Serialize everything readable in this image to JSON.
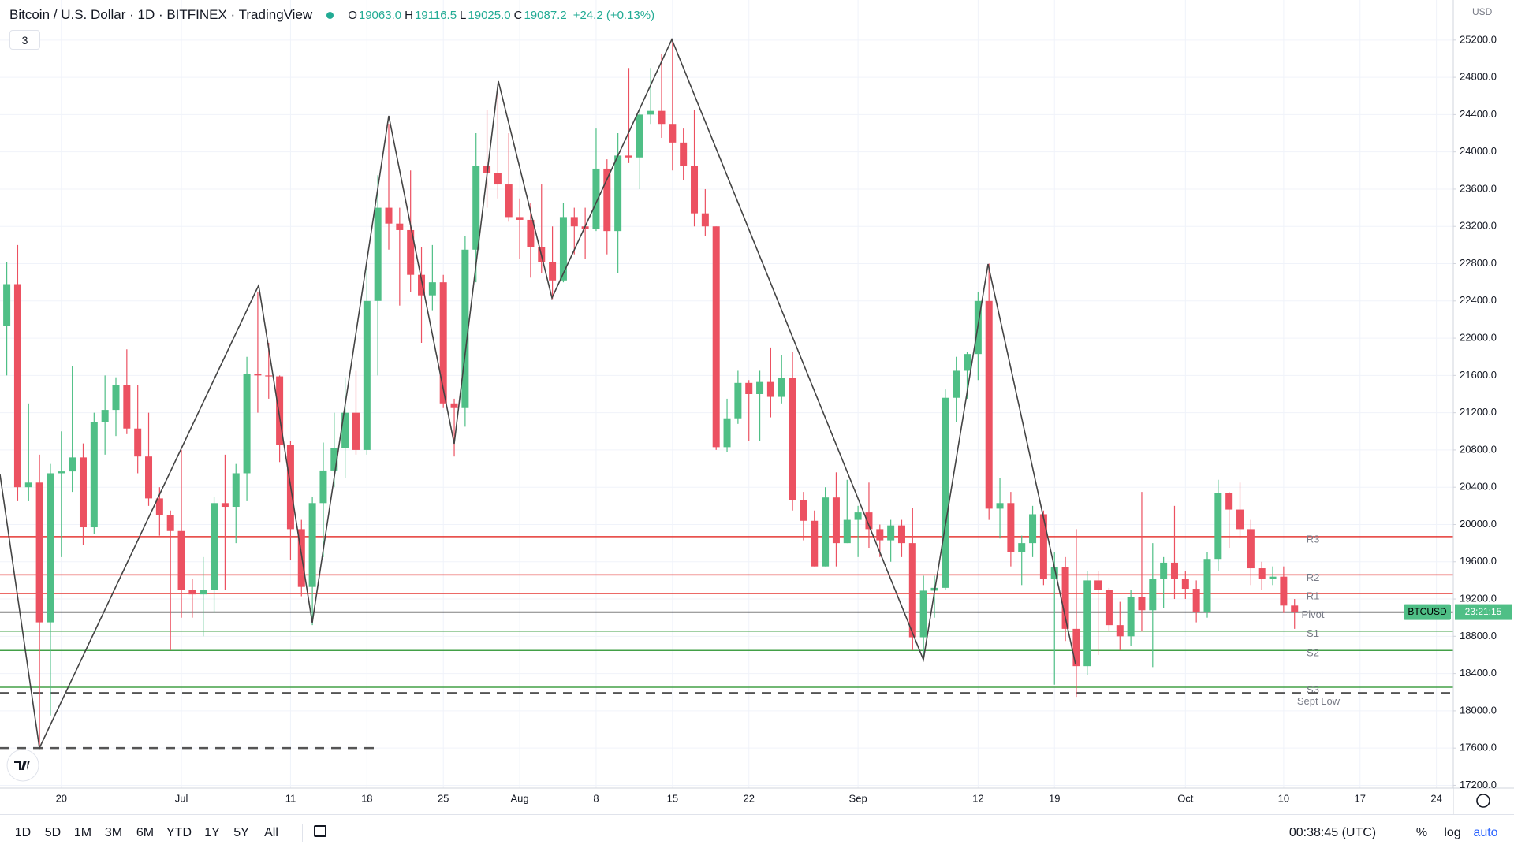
{
  "header": {
    "title": "Bitcoin / U.S. Dollar · 1D · BITFINEX · TradingView",
    "ohlc": [
      {
        "label": "O",
        "value": "19063.0"
      },
      {
        "label": "H",
        "value": "19116.5"
      },
      {
        "label": "L",
        "value": "19025.0"
      },
      {
        "label": "C",
        "value": "19087.2"
      }
    ],
    "change": "+24.2 (+0.13%)",
    "indicators": "3",
    "currency": "USD"
  },
  "toolbar": {
    "ranges": [
      "1D",
      "5D",
      "1M",
      "3M",
      "6M",
      "YTD",
      "1Y",
      "5Y",
      "All"
    ],
    "clock": "00:38:45 (UTC)",
    "options": [
      "%",
      "log",
      "auto"
    ]
  },
  "chart_data": {
    "type": "candlestick",
    "up_color": "#4fbf86",
    "down_color": "#ec5161",
    "categories": [
      null,
      null,
      null,
      null,
      null,
      "20",
      null,
      null,
      null,
      null,
      null,
      null,
      null,
      null,
      null,
      null,
      "Jul",
      null,
      null,
      null,
      null,
      null,
      null,
      null,
      null,
      null,
      "11",
      null,
      null,
      null,
      null,
      null,
      null,
      "18",
      null,
      null,
      null,
      null,
      null,
      null,
      "25",
      null,
      null,
      null,
      null,
      null,
      null,
      "Aug",
      null,
      null,
      null,
      null,
      null,
      null,
      "8",
      null,
      null,
      null,
      null,
      null,
      null,
      "15",
      null,
      null,
      null,
      null,
      null,
      null,
      "22",
      null,
      null,
      null,
      null,
      null,
      null,
      null,
      null,
      null,
      "Sep",
      null,
      null,
      null,
      null,
      null,
      null,
      null,
      null,
      null,
      null,
      "12",
      null,
      null,
      null,
      null,
      null,
      null,
      "19",
      null,
      null,
      null,
      null,
      null,
      null,
      null,
      null,
      null,
      null,
      null,
      "Oct",
      null,
      null,
      null,
      null,
      null,
      null,
      null,
      null,
      "10",
      null,
      null,
      null,
      null,
      null,
      null,
      "17",
      null,
      null,
      null,
      null,
      null,
      null,
      "24",
      null
    ],
    "open": [
      22130,
      22580,
      20400,
      20450,
      18950,
      20550,
      20570,
      20720,
      19970,
      21100,
      21230,
      21500,
      21030,
      20730,
      20280,
      20100,
      19930,
      19300,
      19250,
      19300,
      20230,
      20190,
      20550,
      21620,
      21600,
      21590,
      20850,
      19950,
      19330,
      20230,
      20580,
      20820,
      21200,
      20800,
      22400,
      23400,
      23230,
      23160,
      22680,
      22460,
      22600,
      21300,
      21250,
      22950,
      23850,
      23770,
      23650,
      23300,
      23270,
      22980,
      22820,
      22620,
      23300,
      23200,
      23170,
      23820,
      23150,
      23960,
      23940,
      24400,
      24440,
      24300,
      24100,
      23850,
      23340,
      23200,
      20830,
      21140,
      21520,
      21400,
      21530,
      21370,
      21570,
      20260,
      20040,
      19550,
      20290,
      19800,
      20050,
      20130,
      19950,
      19830,
      19990,
      19800,
      18790,
      19290,
      19320,
      21360,
      21650,
      21830,
      22400,
      20170,
      20230,
      19700,
      19800,
      20110,
      19420,
      19540,
      18880,
      18480,
      19400,
      19300,
      18920,
      18800,
      19220,
      19080,
      19420,
      19590,
      19420,
      19310,
      19060,
      19630,
      20340,
      20160,
      19950,
      19530,
      19420,
      19440,
      19130,
      null,
      null,
      null,
      null,
      null,
      null,
      null,
      null,
      null,
      null,
      null,
      null,
      null,
      null
    ],
    "high": [
      22820,
      23000,
      21300,
      20750,
      20650,
      21000,
      21700,
      20870,
      21200,
      21600,
      21580,
      21880,
      21500,
      21200,
      20400,
      20150,
      20800,
      19420,
      19650,
      20300,
      20750,
      20650,
      21800,
      22500,
      21950,
      21600,
      20900,
      20050,
      20300,
      20880,
      21200,
      21580,
      21650,
      22750,
      23750,
      24300,
      23400,
      23800,
      22980,
      23000,
      22680,
      21350,
      23100,
      24200,
      24450,
      24700,
      24200,
      23500,
      23450,
      23650,
      23200,
      23450,
      23400,
      23400,
      24250,
      23920,
      24200,
      24900,
      24450,
      24900,
      25050,
      25200,
      24250,
      24450,
      23600,
      23200,
      21350,
      21650,
      21550,
      21650,
      21900,
      21820,
      21850,
      20350,
      20150,
      20400,
      20560,
      20480,
      20200,
      20450,
      20000,
      20050,
      20050,
      20180,
      19450,
      19450,
      21450,
      21800,
      21850,
      22500,
      22800,
      20500,
      20350,
      19880,
      20200,
      20150,
      19700,
      19650,
      19950,
      19500,
      19500,
      19320,
      19170,
      19300,
      20350,
      19800,
      19650,
      20200,
      19500,
      19400,
      19700,
      20480,
      20350,
      20450,
      20050,
      19600,
      19550,
      19550,
      19200,
      null,
      null,
      null,
      null,
      null,
      null,
      null,
      null,
      null,
      null,
      null,
      null,
      null,
      null
    ],
    "low": [
      21600,
      20250,
      20250,
      17600,
      17950,
      19650,
      20350,
      19780,
      19900,
      20750,
      20950,
      20970,
      20550,
      20200,
      19880,
      18650,
      19000,
      19000,
      18800,
      19050,
      19300,
      19800,
      20250,
      21200,
      21350,
      20670,
      19620,
      19230,
      18920,
      19650,
      20400,
      20500,
      20750,
      20750,
      21600,
      22950,
      22350,
      22500,
      21950,
      22300,
      21250,
      20730,
      21050,
      22600,
      23400,
      23500,
      23250,
      22850,
      22650,
      22700,
      22420,
      22600,
      22900,
      22850,
      23150,
      22900,
      22700,
      23880,
      23600,
      24300,
      24150,
      23800,
      23700,
      23200,
      23100,
      20800,
      20780,
      21080,
      20900,
      20900,
      21150,
      21300,
      20150,
      19830,
      19550,
      19550,
      19550,
      19800,
      19650,
      19750,
      19650,
      19600,
      19650,
      18650,
      18550,
      19000,
      19300,
      21100,
      21350,
      21550,
      20050,
      19850,
      19550,
      19350,
      19650,
      19350,
      18280,
      18750,
      18150,
      18380,
      18600,
      18850,
      18650,
      18700,
      18850,
      18470,
      19100,
      19200,
      19200,
      18950,
      19000,
      19500,
      19750,
      19850,
      19350,
      19300,
      19350,
      19050,
      18880,
      null,
      null,
      null,
      null,
      null,
      null,
      null,
      null,
      null,
      null,
      null,
      null,
      null,
      null
    ],
    "close": [
      22580,
      20400,
      20450,
      18950,
      20550,
      20570,
      20720,
      19970,
      21100,
      21230,
      21500,
      21030,
      20730,
      20280,
      20100,
      19930,
      19300,
      19250,
      19300,
      20230,
      20190,
      20550,
      21620,
      21600,
      21590,
      20850,
      19950,
      19330,
      20230,
      20580,
      20820,
      21200,
      20800,
      22400,
      23400,
      23230,
      23160,
      22680,
      22460,
      22600,
      21300,
      21250,
      22950,
      23850,
      23770,
      23650,
      23300,
      23270,
      22980,
      22820,
      22620,
      23300,
      23200,
      23170,
      23820,
      23150,
      23960,
      23940,
      24400,
      24440,
      24300,
      24100,
      23850,
      23340,
      23200,
      20830,
      21140,
      21520,
      21400,
      21530,
      21370,
      21570,
      20260,
      20040,
      19550,
      20290,
      19800,
      20050,
      20130,
      19950,
      19830,
      19990,
      19800,
      18790,
      19290,
      19320,
      21360,
      21650,
      21830,
      22400,
      20170,
      20230,
      19700,
      19800,
      20110,
      19420,
      19540,
      18880,
      18480,
      19400,
      19300,
      18920,
      18800,
      19220,
      19080,
      19420,
      19590,
      19420,
      19310,
      19060,
      19630,
      20340,
      20160,
      19950,
      19530,
      19420,
      19440,
      19130,
      19060,
      null,
      null,
      null,
      null,
      null,
      null,
      null,
      null,
      null,
      null,
      null,
      null,
      null,
      null
    ],
    "ylim": [
      17170,
      25630
    ],
    "yticks": [
      {
        "value": 17200,
        "label": "17200.0"
      },
      {
        "value": 17600,
        "label": "17600.0"
      },
      {
        "value": 18000,
        "label": "18000.0"
      },
      {
        "value": 18400,
        "label": "18400.0"
      },
      {
        "value": 18800,
        "label": "18800.0"
      },
      {
        "value": 19200,
        "label": "19200.0"
      },
      {
        "value": 19600,
        "label": "19600.0"
      },
      {
        "value": 20000,
        "label": "20000.0"
      },
      {
        "value": 20400,
        "label": "20400.0"
      },
      {
        "value": 20800,
        "label": "20800.0"
      },
      {
        "value": 21200,
        "label": "21200.0"
      },
      {
        "value": 21600,
        "label": "21600.0"
      },
      {
        "value": 22000,
        "label": "22000.0"
      },
      {
        "value": 22400,
        "label": "22400.0"
      },
      {
        "value": 22800,
        "label": "22800.0"
      },
      {
        "value": 23200,
        "label": "23200.0"
      },
      {
        "value": 23600,
        "label": "23600.0"
      },
      {
        "value": 24000,
        "label": "24000.0"
      },
      {
        "value": 24400,
        "label": "24400.0"
      },
      {
        "value": 24800,
        "label": "24800.0"
      },
      {
        "value": 25200,
        "label": "25200.0"
      }
    ],
    "grid": true,
    "levels": [
      {
        "name": "R3",
        "value": 19870,
        "color": "#e53935"
      },
      {
        "name": "R2",
        "value": 19460,
        "color": "#e53935"
      },
      {
        "name": "R1",
        "value": 19260,
        "color": "#e53935"
      },
      {
        "name": "Pivot",
        "value": 19060,
        "color": "#000000"
      },
      {
        "name": "S1",
        "value": 18856,
        "color": "#43a047"
      },
      {
        "name": "S2",
        "value": 18648,
        "color": "#43a047"
      },
      {
        "name": "S3",
        "value": 18253,
        "color": "#43a047"
      },
      {
        "name": "Sept Low",
        "value": 18190,
        "color": "#555555",
        "dashed": true
      },
      {
        "value": 17600,
        "color": "#555555",
        "dashed": true
      }
    ],
    "price_tag": {
      "symbol": "BTCUSD",
      "countdown": "23:21:15",
      "color": "#4fbf86"
    }
  }
}
